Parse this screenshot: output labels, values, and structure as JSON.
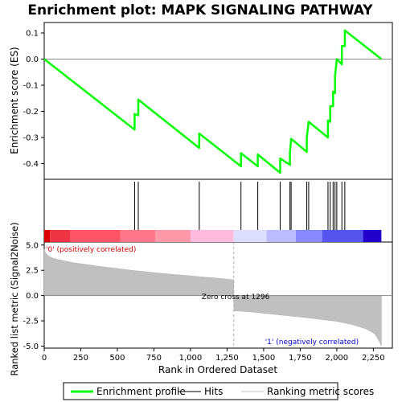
{
  "chart_data": {
    "type": "line",
    "title": "Enrichment plot: MAPK SIGNALING PATHWAY",
    "es_panel": {
      "ylabel": "Enrichment score (ES)",
      "ylim": [
        -0.46,
        0.14
      ],
      "yticks": [
        0.1,
        0.0,
        -0.1,
        -0.2,
        -0.3,
        -0.4
      ],
      "ytick_labels": [
        "0.1",
        "0.0",
        "-0.1",
        "-0.2",
        "-0.3",
        "-0.4"
      ],
      "series": [
        {
          "name": "Enrichment profile",
          "color": "#00ff00",
          "x": [
            0,
            618,
            618,
            643,
            643,
            1060,
            1060,
            1345,
            1345,
            1460,
            1460,
            1613,
            1613,
            1680,
            1680,
            1688,
            1688,
            1795,
            1795,
            1808,
            1808,
            1940,
            1940,
            1955,
            1955,
            1975,
            1975,
            1988,
            1988,
            2000,
            2000,
            2035,
            2035,
            2055,
            2055,
            2305
          ],
          "y": [
            0.0,
            -0.27,
            -0.21,
            -0.215,
            -0.155,
            -0.34,
            -0.285,
            -0.41,
            -0.36,
            -0.41,
            -0.365,
            -0.435,
            -0.38,
            -0.405,
            -0.36,
            -0.305,
            -0.305,
            -0.355,
            -0.3,
            -0.24,
            -0.24,
            -0.3,
            -0.235,
            -0.24,
            -0.18,
            -0.18,
            -0.125,
            -0.13,
            -0.065,
            0.0,
            0.0,
            -0.02,
            0.05,
            0.05,
            0.11,
            0.0
          ]
        }
      ]
    },
    "hits_panel": {
      "hit_positions": [
        618,
        643,
        1060,
        1345,
        1460,
        1613,
        1680,
        1688,
        1795,
        1808,
        1940,
        1955,
        1975,
        1988,
        2000,
        2035,
        2055
      ]
    },
    "ranking_panel": {
      "ylabel": "Ranked list metric (Signal2Noise)",
      "ylim": [
        -5.2,
        5.3
      ],
      "yticks": [
        5.0,
        2.5,
        0.0,
        -2.5,
        -5.0
      ],
      "ytick_labels": [
        "5.0",
        "2.5",
        "0.0",
        "-2.5",
        "-5.0"
      ],
      "xlabel": "Rank in Ordered Dataset",
      "xlim": [
        0,
        2380
      ],
      "xticks": [
        0,
        250,
        500,
        750,
        1000,
        1250,
        1500,
        1750,
        2000,
        2250
      ],
      "xtick_labels": [
        "0",
        "250",
        "500",
        "750",
        "1,000",
        "1,250",
        "1,500",
        "1,750",
        "2,000",
        "2,250"
      ],
      "profile_x": [
        0,
        10,
        30,
        60,
        100,
        200,
        400,
        600,
        800,
        1000,
        1200,
        1296,
        1296,
        1400,
        1600,
        1800,
        2000,
        2100,
        2200,
        2260,
        2290,
        2305
      ],
      "profile_y": [
        4.6,
        4.2,
        3.9,
        3.7,
        3.55,
        3.25,
        2.85,
        2.5,
        2.2,
        1.95,
        1.7,
        1.55,
        -1.5,
        -1.6,
        -1.9,
        -2.2,
        -2.55,
        -2.85,
        -3.3,
        -3.8,
        -4.5,
        -5.0
      ],
      "zero_cross_rank": 1296,
      "zero_cross_label": "Zero cross at 1296",
      "positive_label": "'0' (positively correlated)",
      "negative_label": "'1' (negatively correlated)",
      "color_bar": [
        {
          "from": 0,
          "to": 40,
          "color": "#dd0000"
        },
        {
          "from": 40,
          "to": 180,
          "color": "#ee3344"
        },
        {
          "from": 180,
          "to": 520,
          "color": "#ff5566"
        },
        {
          "from": 520,
          "to": 760,
          "color": "#ff7788"
        },
        {
          "from": 760,
          "to": 1000,
          "color": "#ff99aa"
        },
        {
          "from": 1000,
          "to": 1296,
          "color": "#ffbbdd"
        },
        {
          "from": 1296,
          "to": 1520,
          "color": "#ddddff"
        },
        {
          "from": 1520,
          "to": 1720,
          "color": "#bbbbff"
        },
        {
          "from": 1720,
          "to": 1900,
          "color": "#8888ff"
        },
        {
          "from": 1900,
          "to": 2180,
          "color": "#5555ee"
        },
        {
          "from": 2180,
          "to": 2305,
          "color": "#2200cc"
        }
      ]
    },
    "legend": {
      "items": [
        {
          "label": "Enrichment profile",
          "color": "#00ff00"
        },
        {
          "label": "Hits",
          "color": "#000000"
        },
        {
          "label": "Ranking metric scores",
          "color": "#c0c0c0"
        }
      ]
    }
  }
}
